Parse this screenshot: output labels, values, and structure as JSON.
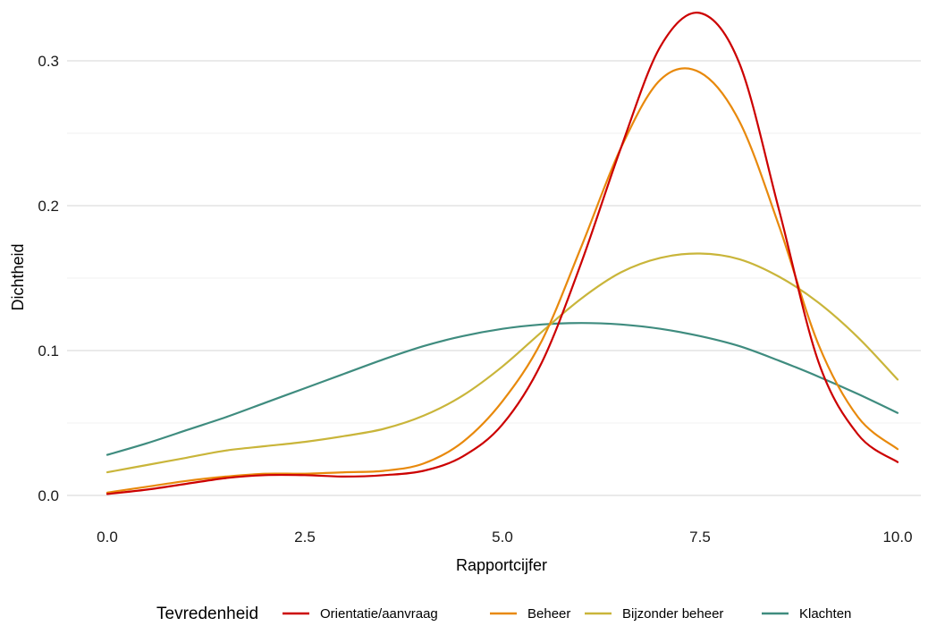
{
  "chart_data": {
    "type": "line",
    "xlabel": "Rapportcijfer",
    "ylabel": "Dichtheid",
    "xlim": [
      0,
      10
    ],
    "ylim": [
      0,
      0.33
    ],
    "x_ticks": [
      "0.0",
      "2.5",
      "5.0",
      "7.5",
      "10.0"
    ],
    "y_ticks": [
      "0.0",
      "0.1",
      "0.2",
      "0.3"
    ],
    "grid": true,
    "legend": {
      "title": "Tevredenheid",
      "position": "bottom"
    },
    "x": [
      0,
      0.5,
      1,
      1.5,
      2,
      2.5,
      3,
      3.5,
      4,
      4.5,
      5,
      5.5,
      6,
      6.5,
      7,
      7.5,
      8,
      8.5,
      9,
      9.5,
      10
    ],
    "series": [
      {
        "name": "Orientatie/aanvraag",
        "color": "#CC0000",
        "values": [
          0.001,
          0.004,
          0.008,
          0.012,
          0.014,
          0.014,
          0.013,
          0.014,
          0.017,
          0.027,
          0.049,
          0.092,
          0.161,
          0.24,
          0.31,
          0.333,
          0.298,
          0.197,
          0.092,
          0.042,
          0.023
        ]
      },
      {
        "name": "Beheer",
        "color": "#E8890C",
        "values": [
          0.002,
          0.006,
          0.01,
          0.013,
          0.015,
          0.015,
          0.016,
          0.017,
          0.022,
          0.037,
          0.065,
          0.107,
          0.172,
          0.24,
          0.287,
          0.292,
          0.258,
          0.186,
          0.104,
          0.054,
          0.032
        ]
      },
      {
        "name": "Bijzonder beheer",
        "color": "#C9B53A",
        "values": [
          0.016,
          0.021,
          0.026,
          0.031,
          0.034,
          0.037,
          0.041,
          0.046,
          0.055,
          0.069,
          0.089,
          0.113,
          0.136,
          0.154,
          0.164,
          0.167,
          0.163,
          0.151,
          0.133,
          0.109,
          0.08
        ]
      },
      {
        "name": "Klachten",
        "color": "#3F8C7F",
        "values": [
          0.028,
          0.036,
          0.045,
          0.054,
          0.064,
          0.074,
          0.084,
          0.094,
          0.103,
          0.11,
          0.115,
          0.118,
          0.119,
          0.118,
          0.115,
          0.11,
          0.103,
          0.093,
          0.082,
          0.07,
          0.057
        ]
      }
    ]
  }
}
